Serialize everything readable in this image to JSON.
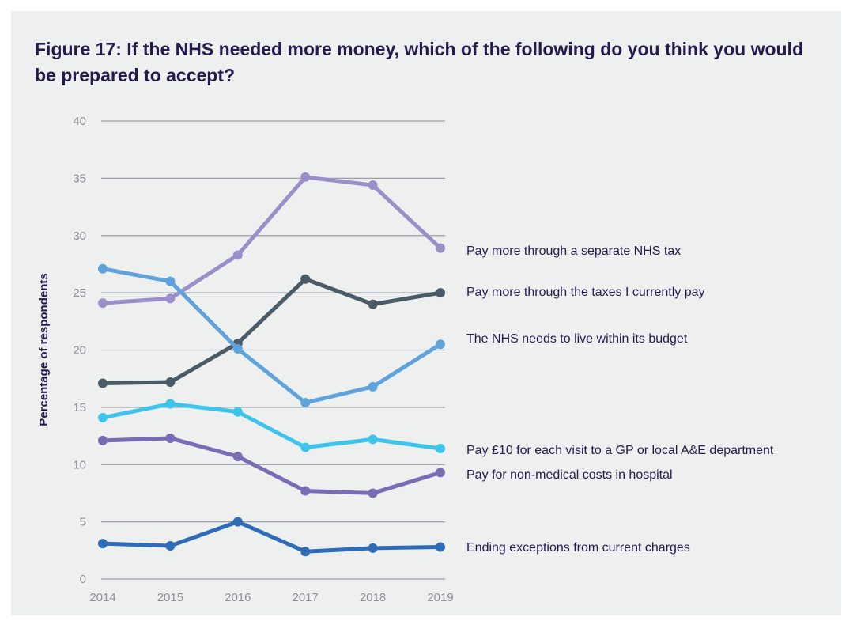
{
  "chart_data": {
    "type": "line",
    "title": "Figure 17: If the NHS needed more money, which of the following do you think you would be prepared to accept?",
    "ylabel": "Percentage of respondents",
    "xlabel": "",
    "x": [
      "2014",
      "2015",
      "2016",
      "2017",
      "2018",
      "2019"
    ],
    "ylim": [
      0,
      40
    ],
    "yticks": [
      0,
      5,
      10,
      15,
      20,
      25,
      30,
      35,
      40
    ],
    "grid": true,
    "legend": "right-inline",
    "series": [
      {
        "name": "Pay more through a separate NHS tax",
        "color": "#9b8fca",
        "values": [
          24.1,
          24.5,
          28.3,
          35.1,
          34.4,
          28.9
        ]
      },
      {
        "name": "Pay more through the taxes I currently pay",
        "color": "#4a5a66",
        "values": [
          17.1,
          17.2,
          20.6,
          26.2,
          24.0,
          25.0
        ]
      },
      {
        "name": "The NHS needs to live within its budget",
        "color": "#5ea3db",
        "values": [
          27.1,
          26.0,
          20.1,
          15.4,
          16.8,
          20.5
        ]
      },
      {
        "name": "Pay £10 for each visit to a GP or local A&E department",
        "color": "#3cc4ea",
        "values": [
          14.1,
          15.3,
          14.6,
          11.5,
          12.2,
          11.4
        ]
      },
      {
        "name": "Pay for non-medical costs in hospital",
        "color": "#7a6bb5",
        "values": [
          12.1,
          12.3,
          10.7,
          7.7,
          7.5,
          9.3
        ]
      },
      {
        "name": "Ending exceptions from current charges",
        "color": "#2e6cb8",
        "values": [
          3.1,
          2.9,
          5.0,
          2.4,
          2.7,
          2.8
        ]
      }
    ]
  }
}
